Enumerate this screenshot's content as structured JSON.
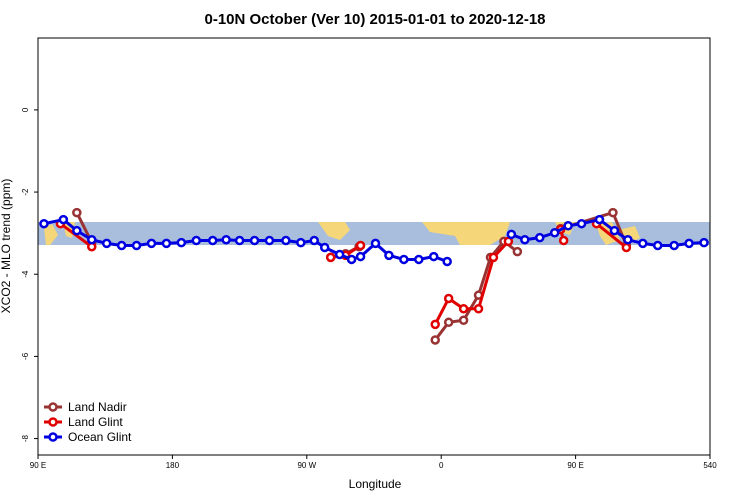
{
  "chart_data": {
    "type": "line",
    "title": "0-10N October (Ver 10)   2015-01-01 to 2020-12-18",
    "xlabel": "Longitude",
    "ylabel": "XCO2 - MLO trend (ppm)",
    "xlim": [
      90,
      540
    ],
    "ylim": [
      -8.4,
      1.75
    ],
    "xticks": [
      {
        "value": 90,
        "label": "90 E"
      },
      180,
      {
        "value": 270,
        "label": "90 W"
      },
      {
        "value": 360,
        "label": "0"
      },
      {
        "value": 450,
        "label": "90 E"
      },
      540
    ],
    "yticks": [
      0,
      -2,
      -4,
      -6,
      -8
    ],
    "legend": "bottom-left",
    "series": [
      {
        "name": "Land Nadir",
        "color": "#993333",
        "x": [
          116,
          126,
          null,
          286,
          296,
          305,
          null,
          356,
          365,
          375,
          385,
          393,
          402,
          411,
          null,
          440,
          475,
          484
        ],
        "values": [
          -2.5,
          -3.23,
          null,
          -3.59,
          -3.5,
          -3.33,
          null,
          -5.6,
          -5.17,
          -5.12,
          -4.51,
          -3.59,
          -3.2,
          -3.45,
          null,
          -2.89,
          -2.5,
          -3.3
        ]
      },
      {
        "name": "Land Glint",
        "color": "#e00000",
        "x": [
          105,
          126,
          null,
          286,
          296,
          306,
          null,
          356,
          365,
          375,
          385,
          395,
          405,
          null,
          440,
          442,
          null,
          464,
          484
        ],
        "values": [
          -2.77,
          -3.33,
          null,
          -3.59,
          -3.54,
          -3.3,
          null,
          -5.22,
          -4.59,
          -4.84,
          -4.84,
          -3.59,
          -3.2,
          null,
          -2.91,
          -3.18,
          null,
          -2.77,
          -3.35
        ]
      },
      {
        "name": "Ocean Glint",
        "color": "#0000e0",
        "x": [
          94,
          107,
          116,
          126,
          136,
          146,
          156,
          166,
          176,
          186,
          196,
          207,
          216,
          225,
          235,
          245,
          256,
          266,
          275,
          282,
          292,
          300,
          306,
          316,
          325,
          335,
          345,
          355,
          364,
          null,
          407,
          416,
          426,
          436,
          445,
          454,
          466,
          476,
          485,
          495,
          505,
          516,
          526,
          536
        ],
        "values": [
          -2.77,
          -2.67,
          -2.94,
          -3.16,
          -3.25,
          -3.3,
          -3.3,
          -3.25,
          -3.25,
          -3.23,
          -3.18,
          -3.18,
          -3.16,
          -3.18,
          -3.18,
          -3.18,
          -3.18,
          -3.23,
          -3.18,
          -3.35,
          -3.52,
          -3.64,
          -3.57,
          -3.25,
          -3.54,
          -3.64,
          -3.64,
          -3.57,
          -3.69,
          null,
          -3.03,
          -3.16,
          -3.11,
          -2.99,
          -2.82,
          -2.77,
          -2.67,
          -2.94,
          -3.16,
          -3.25,
          -3.3,
          -3.3,
          -3.25,
          -3.23
        ]
      }
    ]
  }
}
